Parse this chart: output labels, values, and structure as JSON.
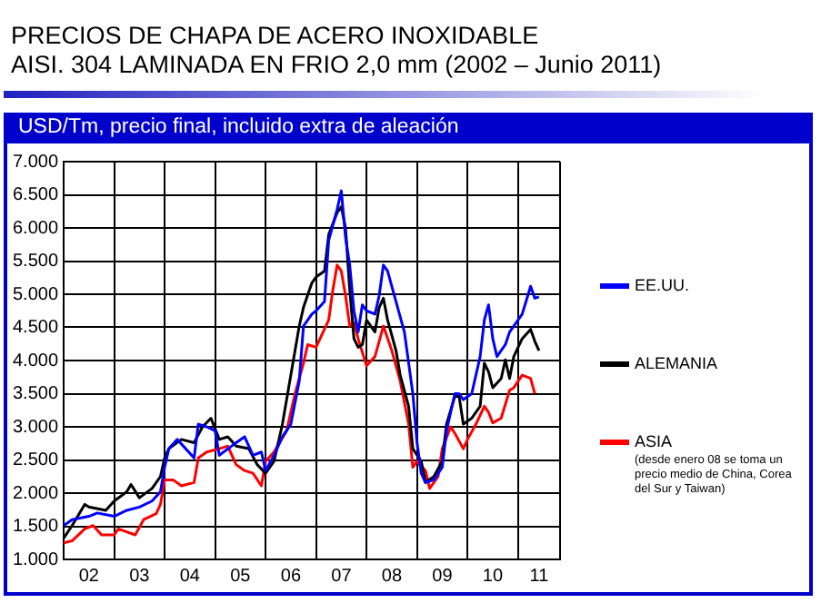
{
  "chart_data": {
    "type": "line",
    "title": "PRECIOS DE CHAPA DE ACERO INOXIDABLE\nAISI. 304 LAMINADA EN FRIO 2,0 mm (2002 – Junio 2011)",
    "subtitle": "USD/Tm, precio final, incluido extra de aleación",
    "xlim": [
      "2002-01",
      "2011-11"
    ],
    "xticks": [
      {
        "value": "2002-07",
        "label": "02"
      },
      {
        "value": "2003-01",
        "label": null
      },
      {
        "value": "2003-07",
        "label": "03"
      },
      {
        "value": "2004-01",
        "label": null
      },
      {
        "value": "2004-07",
        "label": "04"
      },
      {
        "value": "2005-01",
        "label": null
      },
      {
        "value": "2005-07",
        "label": "05"
      },
      {
        "value": "2006-01",
        "label": null
      },
      {
        "value": "2006-07",
        "label": "06"
      },
      {
        "value": "2007-01",
        "label": null
      },
      {
        "value": "2007-07",
        "label": "07"
      },
      {
        "value": "2008-01",
        "label": null
      },
      {
        "value": "2008-07",
        "label": "08"
      },
      {
        "value": "2009-01",
        "label": null
      },
      {
        "value": "2009-07",
        "label": "09"
      },
      {
        "value": "2010-01",
        "label": null
      },
      {
        "value": "2010-07",
        "label": "10"
      },
      {
        "value": "2011-01",
        "label": null
      },
      {
        "value": "2011-06",
        "label": "11"
      }
    ],
    "ylim": [
      1000,
      7000
    ],
    "yticks": [
      {
        "value": 1000,
        "label": "1.000"
      },
      {
        "value": 1500,
        "label": "1.500"
      },
      {
        "value": 2000,
        "label": "2.000"
      },
      {
        "value": 2500,
        "label": "2.500"
      },
      {
        "value": 3000,
        "label": "3.000"
      },
      {
        "value": 3500,
        "label": "3.500"
      },
      {
        "value": 4000,
        "label": "4.000"
      },
      {
        "value": 4500,
        "label": "4.500"
      },
      {
        "value": 5000,
        "label": "5.000"
      },
      {
        "value": 5500,
        "label": "5.500"
      },
      {
        "value": 6000,
        "label": "6.000"
      },
      {
        "value": 6500,
        "label": "6.500"
      },
      {
        "value": 7000,
        "label": "7.000"
      }
    ],
    "grid": true,
    "legend": "right",
    "marker": "none",
    "line_style": "solid",
    "annotations": [
      "(desde enero 08 se toma un precio medio de China, Corea del Sur y Taiwan)"
    ],
    "series": [
      {
        "name": "EE.UU.",
        "color": "#0000ff",
        "x": [
          "2002-01",
          "2002-03",
          "2002-07",
          "2002-09",
          "2003-01",
          "2003-04",
          "2003-07",
          "2003-10",
          "2003-12",
          "2004-01",
          "2004-02",
          "2004-04",
          "2004-08",
          "2004-09",
          "2004-11",
          "2005-01",
          "2005-02",
          "2005-03",
          "2005-06",
          "2005-08",
          "2005-10",
          "2005-12",
          "2006-01",
          "2006-03",
          "2006-05",
          "2006-07",
          "2006-09",
          "2006-10",
          "2006-12",
          "2007-01",
          "2007-03",
          "2007-04",
          "2007-06",
          "2007-07",
          "2007-08",
          "2007-09",
          "2007-10",
          "2007-11",
          "2007-12",
          "2008-01",
          "2008-03",
          "2008-04",
          "2008-05",
          "2008-06",
          "2008-08",
          "2008-10",
          "2008-12",
          "2009-01",
          "2009-02",
          "2009-03",
          "2009-05",
          "2009-07",
          "2009-08",
          "2009-10",
          "2009-11",
          "2009-12",
          "2010-02",
          "2010-04",
          "2010-05",
          "2010-06",
          "2010-07",
          "2010-08",
          "2010-10",
          "2010-11",
          "2010-12",
          "2011-02",
          "2011-04",
          "2011-05",
          "2011-06"
        ],
        "values": [
          1510,
          1600,
          1650,
          1700,
          1650,
          1740,
          1790,
          1880,
          2020,
          2390,
          2670,
          2810,
          2530,
          3040,
          3000,
          2940,
          2570,
          2620,
          2760,
          2850,
          2570,
          2620,
          2340,
          2570,
          2850,
          3040,
          3690,
          4520,
          4700,
          4750,
          4890,
          5810,
          6280,
          6560,
          5860,
          5440,
          4750,
          4430,
          4840,
          4750,
          4700,
          4980,
          5440,
          5350,
          4890,
          4430,
          3500,
          2760,
          2300,
          2160,
          2200,
          2390,
          2940,
          3500,
          3500,
          3410,
          3500,
          4060,
          4610,
          4840,
          4330,
          4060,
          4240,
          4430,
          4520,
          4700,
          5120,
          4940,
          4960
        ]
      },
      {
        "name": "ALEMANIA",
        "color": "#000000",
        "x": [
          "2002-01",
          "2002-03",
          "2002-06",
          "2002-07",
          "2002-11",
          "2003-01",
          "2003-04",
          "2003-05",
          "2003-07",
          "2003-10",
          "2003-12",
          "2004-01",
          "2004-02",
          "2004-05",
          "2004-08",
          "2004-10",
          "2004-12",
          "2005-02",
          "2005-04",
          "2005-06",
          "2005-09",
          "2005-11",
          "2006-01",
          "2006-03",
          "2006-05",
          "2006-07",
          "2006-09",
          "2006-10",
          "2006-12",
          "2007-01",
          "2007-03",
          "2007-04",
          "2007-06",
          "2007-07",
          "2007-08",
          "2007-09",
          "2007-10",
          "2007-11",
          "2007-12",
          "2008-01",
          "2008-03",
          "2008-04",
          "2008-05",
          "2008-06",
          "2008-08",
          "2008-09",
          "2008-11",
          "2008-12",
          "2009-02",
          "2009-03",
          "2009-05",
          "2009-07",
          "2009-08",
          "2009-10",
          "2009-11",
          "2009-12",
          "2010-02",
          "2010-04",
          "2010-05",
          "2010-06",
          "2010-07",
          "2010-09",
          "2010-10",
          "2010-11",
          "2010-12",
          "2011-02",
          "2011-04",
          "2011-05",
          "2011-06"
        ],
        "values": [
          1320,
          1510,
          1830,
          1790,
          1740,
          1880,
          2020,
          2130,
          1930,
          2070,
          2250,
          2530,
          2670,
          2810,
          2760,
          3000,
          3130,
          2810,
          2850,
          2710,
          2670,
          2430,
          2300,
          2480,
          3040,
          3780,
          4520,
          4800,
          5170,
          5260,
          5350,
          5900,
          6230,
          6320,
          6000,
          5070,
          4330,
          4200,
          4240,
          4610,
          4430,
          4800,
          4940,
          4610,
          4150,
          3780,
          3310,
          2670,
          2480,
          2160,
          2250,
          2480,
          3040,
          3460,
          3460,
          3040,
          3130,
          3310,
          3960,
          3830,
          3590,
          3730,
          4010,
          3730,
          4060,
          4330,
          4470,
          4290,
          4150
        ]
      },
      {
        "name": "ASIA",
        "color": "#ff0000",
        "x": [
          "2002-01",
          "2002-03",
          "2002-06",
          "2002-08",
          "2002-10",
          "2003-01",
          "2003-02",
          "2003-06",
          "2003-08",
          "2003-11",
          "2003-12",
          "2004-01",
          "2004-03",
          "2004-05",
          "2004-08",
          "2004-09",
          "2004-11",
          "2005-02",
          "2005-04",
          "2005-06",
          "2005-08",
          "2005-10",
          "2005-12",
          "2006-01",
          "2006-03",
          "2006-06",
          "2006-08",
          "2006-10",
          "2006-11",
          "2007-01",
          "2007-04",
          "2007-05",
          "2007-06",
          "2007-07",
          "2007-08",
          "2007-09",
          "2007-10",
          "2007-11",
          "2008-01",
          "2008-03",
          "2008-05",
          "2008-07",
          "2008-09",
          "2008-11",
          "2008-12",
          "2009-01",
          "2009-03",
          "2009-04",
          "2009-06",
          "2009-07",
          "2009-09",
          "2009-10",
          "2009-12",
          "2010-01",
          "2010-03",
          "2010-05",
          "2010-06",
          "2010-07",
          "2010-09",
          "2010-11",
          "2010-12",
          "2011-02",
          "2011-04",
          "2011-05"
        ],
        "values": [
          1250,
          1280,
          1460,
          1510,
          1370,
          1370,
          1460,
          1370,
          1600,
          1690,
          1830,
          2200,
          2200,
          2110,
          2160,
          2530,
          2620,
          2670,
          2710,
          2430,
          2340,
          2300,
          2110,
          2480,
          2620,
          2940,
          3500,
          3960,
          4240,
          4200,
          4610,
          5070,
          5440,
          5350,
          4980,
          4520,
          4570,
          4330,
          3920,
          4060,
          4520,
          4150,
          3690,
          3040,
          2390,
          2480,
          2340,
          2070,
          2250,
          2670,
          3000,
          2900,
          2670,
          2810,
          3040,
          3310,
          3220,
          3060,
          3130,
          3550,
          3590,
          3780,
          3730,
          3500
        ]
      }
    ]
  }
}
